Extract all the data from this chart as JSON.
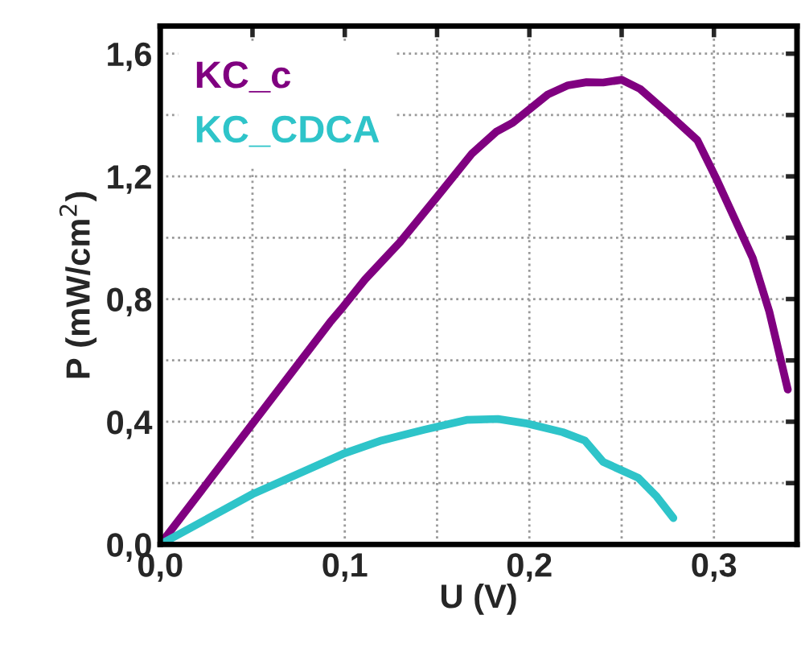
{
  "chart_data": {
    "type": "line",
    "xlabel": "U (V)",
    "ylabel": "P (mW/cm$^{2}$)",
    "xlim": [
      0,
      0.345
    ],
    "ylim": [
      0,
      1.69
    ],
    "xticks": [
      {
        "value": 0,
        "label": "0,0"
      },
      {
        "value": 0.05,
        "label": null
      },
      {
        "value": 0.1,
        "label": "0,1"
      },
      {
        "value": 0.15,
        "label": null
      },
      {
        "value": 0.2,
        "label": "0,2"
      },
      {
        "value": 0.25,
        "label": null
      },
      {
        "value": 0.3,
        "label": "0,3"
      }
    ],
    "yticks": [
      {
        "value": 0,
        "label": "0,0"
      },
      {
        "value": 0.2,
        "label": null
      },
      {
        "value": 0.4,
        "label": "0,4"
      },
      {
        "value": 0.6,
        "label": null
      },
      {
        "value": 0.8,
        "label": "0,8"
      },
      {
        "value": 1.0,
        "label": null
      },
      {
        "value": 1.2,
        "label": "1,2"
      },
      {
        "value": 1.4,
        "label": null
      },
      {
        "value": 1.6,
        "label": "1,6"
      }
    ],
    "grid": true,
    "legend": "top left",
    "marker": "none",
    "line_style": "solid",
    "series": [
      {
        "name": "KC_c",
        "color": "#800080",
        "x": [
          0,
          0.092,
          0.0994,
          0.111,
          0.13,
          0.149,
          0.169,
          0.182,
          0.191,
          0.21,
          0.221,
          0.231,
          0.24,
          0.25,
          0.26,
          0.275,
          0.291,
          0.301,
          0.321,
          0.33,
          0.34
        ],
        "values": [
          0,
          0.724,
          0.777,
          0.864,
          0.986,
          1.126,
          1.275,
          1.345,
          1.375,
          1.467,
          1.497,
          1.507,
          1.506,
          1.515,
          1.485,
          1.406,
          1.318,
          1.196,
          0.934,
          0.759,
          0.505
        ]
      },
      {
        "name": "KC_CDCA",
        "color": "#2ec4c9",
        "x": [
          0,
          0.05,
          0.099,
          0.12,
          0.143,
          0.166,
          0.183,
          0.198,
          0.218,
          0.23,
          0.24,
          0.259,
          0.269,
          0.278
        ],
        "values": [
          0,
          0.164,
          0.295,
          0.339,
          0.374,
          0.406,
          0.409,
          0.395,
          0.366,
          0.339,
          0.269,
          0.217,
          0.156,
          0.086
        ]
      }
    ]
  }
}
